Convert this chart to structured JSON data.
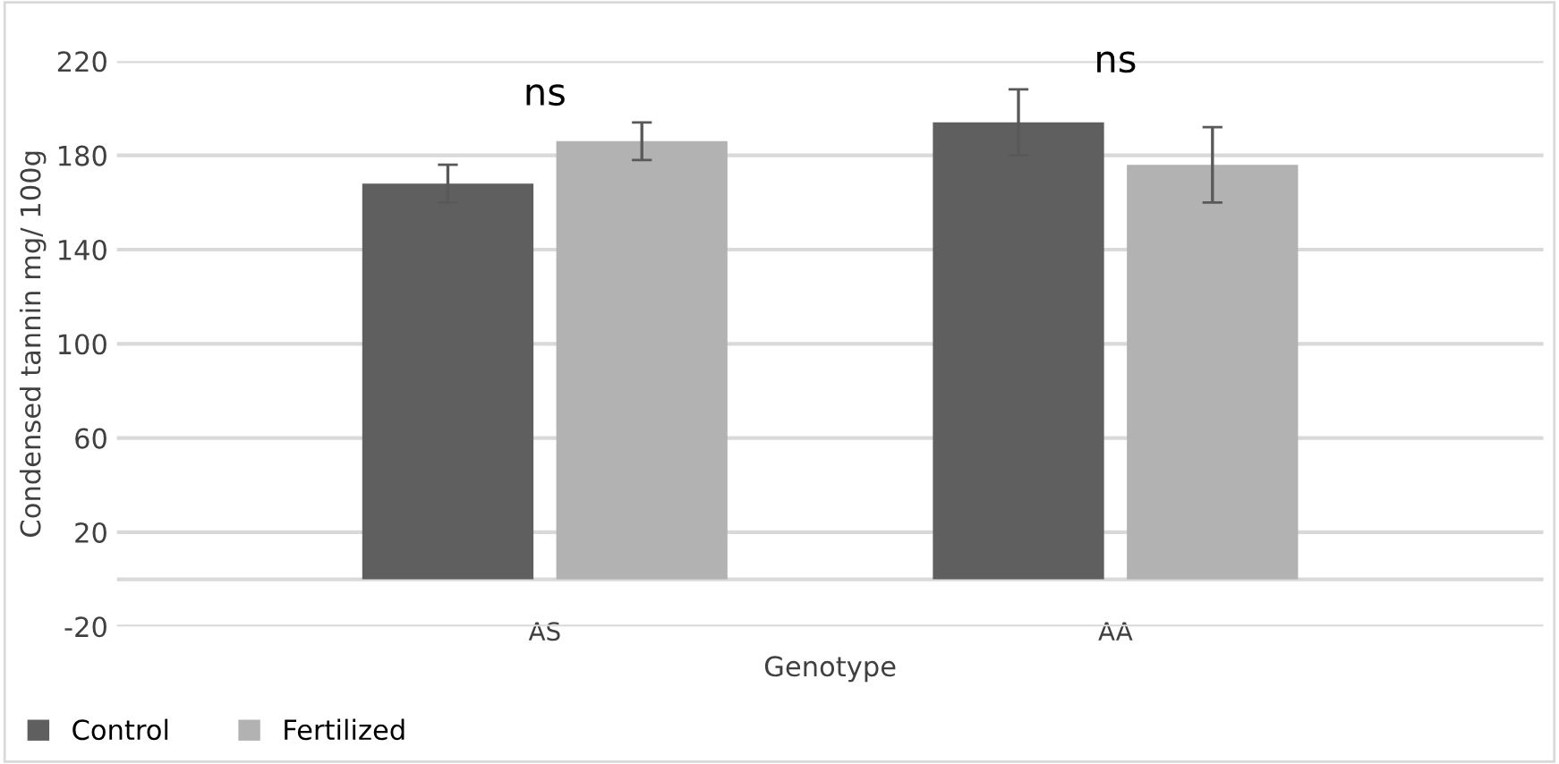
{
  "chart_data": {
    "type": "bar",
    "xlabel": "Genotype",
    "ylabel": "Condensed tannin mg/ 100g",
    "categories": [
      "AS",
      "AA"
    ],
    "series": [
      {
        "name": "Control",
        "color": "#5f5f5f",
        "values": [
          168,
          194
        ],
        "errors": [
          8,
          14
        ]
      },
      {
        "name": "Fertilized",
        "color": "#b2b2b2",
        "values": [
          186,
          176
        ],
        "errors": [
          8,
          16
        ]
      }
    ],
    "ylim": [
      -20,
      220
    ],
    "yticks": [
      -20,
      20,
      60,
      100,
      140,
      180,
      220
    ],
    "grid": "y",
    "legend": "bottom left",
    "annotations": [
      "ns",
      "ns"
    ]
  }
}
